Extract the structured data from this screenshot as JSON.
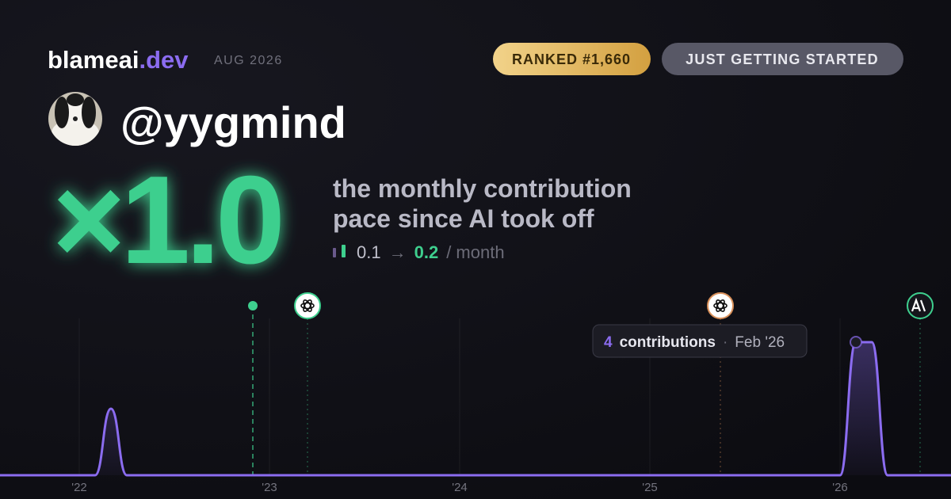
{
  "header": {
    "brand": "blameai",
    "brand_suffix": ".dev",
    "period": "AUG 2026",
    "rank_badge": "RANKED #1,660",
    "level_badge": "JUST GETTING STARTED"
  },
  "profile": {
    "handle": "@yygmind"
  },
  "stats": {
    "multiplier": "×1.0",
    "description_line1": "the monthly contribution",
    "description_line2": "pace since AI took off",
    "before": "0.1",
    "arrow": "→",
    "after": "0.2",
    "unit": "/ month"
  },
  "chart_data": {
    "type": "line",
    "color": "#8b6cf0",
    "categories": [
      null,
      null,
      null,
      null,
      null,
      "'22",
      null,
      null,
      null,
      null,
      null,
      null,
      null,
      null,
      null,
      null,
      null,
      "'23",
      null,
      null,
      null,
      null,
      null,
      null,
      null,
      null,
      null,
      null,
      null,
      "'24",
      null,
      null,
      null,
      null,
      null,
      null,
      null,
      null,
      null,
      null,
      null,
      "'25",
      null,
      null,
      null,
      null,
      null,
      null,
      null,
      null,
      null,
      null,
      null,
      "'26",
      null,
      null,
      null,
      null,
      null,
      null,
      null
    ],
    "values": [
      0,
      0,
      0,
      0,
      0,
      0,
      0,
      2,
      0,
      0,
      0,
      0,
      0,
      0,
      0,
      0,
      0,
      0,
      0,
      0,
      0,
      0,
      0,
      0,
      0,
      0,
      0,
      0,
      0,
      0,
      0,
      0,
      0,
      0,
      0,
      0,
      0,
      0,
      0,
      0,
      0,
      0,
      0,
      0,
      0,
      0,
      0,
      0,
      0,
      0,
      0,
      0,
      0,
      0,
      4,
      4,
      0,
      0,
      0,
      0,
      0
    ],
    "ylim": [
      0,
      4.5
    ],
    "grid": true,
    "tooltip": {
      "label": "contributions",
      "separator": "·",
      "date": "Feb '26"
    }
  }
}
